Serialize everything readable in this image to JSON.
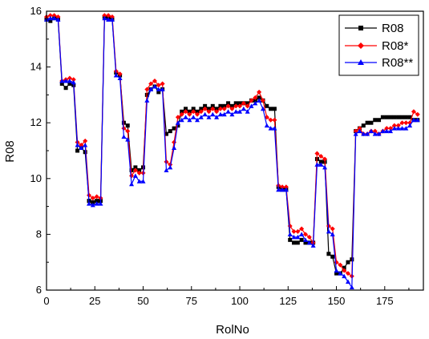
{
  "chart_data": {
    "type": "line",
    "xlabel": "RolNo",
    "ylabel": "R08",
    "xlim": [
      0,
      195
    ],
    "ylim": [
      6,
      16
    ],
    "xticks": [
      "0",
      "25",
      "50",
      "75",
      "100",
      "125",
      "150",
      "175"
    ],
    "yticks": [
      "6",
      "8",
      "10",
      "12",
      "14",
      "16"
    ],
    "grid": false,
    "legend_position": "top-right",
    "x": [
      0,
      2,
      4,
      6,
      8,
      10,
      12,
      14,
      16,
      18,
      20,
      22,
      24,
      26,
      28,
      30,
      32,
      34,
      36,
      38,
      40,
      42,
      44,
      46,
      48,
      50,
      52,
      54,
      56,
      58,
      60,
      62,
      64,
      66,
      68,
      70,
      72,
      74,
      76,
      78,
      80,
      82,
      84,
      86,
      88,
      90,
      92,
      94,
      96,
      98,
      100,
      102,
      104,
      106,
      108,
      110,
      112,
      114,
      116,
      118,
      120,
      122,
      124,
      126,
      128,
      130,
      132,
      134,
      136,
      138,
      140,
      142,
      144,
      146,
      148,
      150,
      152,
      154,
      156,
      158,
      160,
      162,
      164,
      166,
      168,
      170,
      172,
      174,
      176,
      178,
      180,
      182,
      184,
      186,
      188,
      190,
      192
    ],
    "series": [
      {
        "name": "R08",
        "color": "#000000",
        "marker": "square",
        "values": [
          15.7,
          15.65,
          15.75,
          15.7,
          13.4,
          13.25,
          13.4,
          13.35,
          11.0,
          11.1,
          10.95,
          9.2,
          9.15,
          9.2,
          9.2,
          15.8,
          15.75,
          15.7,
          13.8,
          13.7,
          12.0,
          11.9,
          10.3,
          10.4,
          10.3,
          10.4,
          13.0,
          13.2,
          13.3,
          13.1,
          13.2,
          11.6,
          11.7,
          11.8,
          11.9,
          12.4,
          12.5,
          12.4,
          12.5,
          12.4,
          12.5,
          12.6,
          12.5,
          12.6,
          12.5,
          12.6,
          12.6,
          12.7,
          12.6,
          12.7,
          12.7,
          12.7,
          12.7,
          12.8,
          12.8,
          12.9,
          12.8,
          12.6,
          12.5,
          12.5,
          9.7,
          9.6,
          9.6,
          7.8,
          7.7,
          7.7,
          7.8,
          7.7,
          7.7,
          7.7,
          10.7,
          10.6,
          10.6,
          7.3,
          7.2,
          6.6,
          6.6,
          6.8,
          7.0,
          7.1,
          11.7,
          11.8,
          11.9,
          12.0,
          12.0,
          12.1,
          12.1,
          12.2,
          12.2,
          12.2,
          12.2,
          12.2,
          12.2,
          12.2,
          12.2,
          12.1,
          12.1
        ]
      },
      {
        "name": "R08*",
        "color": "#ff0000",
        "marker": "diamond",
        "values": [
          15.8,
          15.85,
          15.85,
          15.8,
          13.5,
          13.55,
          13.6,
          13.55,
          11.3,
          11.2,
          11.35,
          9.4,
          9.3,
          9.35,
          9.3,
          15.85,
          15.85,
          15.8,
          13.85,
          13.75,
          11.8,
          11.7,
          10.1,
          10.3,
          10.2,
          10.2,
          13.2,
          13.4,
          13.5,
          13.35,
          13.4,
          10.6,
          10.5,
          11.3,
          12.2,
          12.3,
          12.4,
          12.3,
          12.4,
          12.3,
          12.4,
          12.5,
          12.4,
          12.5,
          12.4,
          12.5,
          12.5,
          12.6,
          12.5,
          12.6,
          12.6,
          12.7,
          12.6,
          12.8,
          12.9,
          13.1,
          12.8,
          12.2,
          12.1,
          12.1,
          9.75,
          9.7,
          9.7,
          8.3,
          8.1,
          8.1,
          8.2,
          8.0,
          7.9,
          7.7,
          10.9,
          10.8,
          10.7,
          8.3,
          8.2,
          7.0,
          6.9,
          6.7,
          6.6,
          6.5,
          11.7,
          11.8,
          11.6,
          11.6,
          11.7,
          11.7,
          11.6,
          11.7,
          11.8,
          11.8,
          11.9,
          11.9,
          12.0,
          12.0,
          12.0,
          12.4,
          12.3
        ]
      },
      {
        "name": "R08**",
        "color": "#0000ff",
        "marker": "triangle",
        "values": [
          15.7,
          15.75,
          15.75,
          15.7,
          13.5,
          13.5,
          13.5,
          13.45,
          11.2,
          11.1,
          11.2,
          9.1,
          9.05,
          9.1,
          9.1,
          15.75,
          15.7,
          15.7,
          13.7,
          13.6,
          11.5,
          11.4,
          9.8,
          10.1,
          9.9,
          9.9,
          12.8,
          13.2,
          13.3,
          13.2,
          13.2,
          10.3,
          10.4,
          11.1,
          12.0,
          12.1,
          12.2,
          12.1,
          12.2,
          12.1,
          12.2,
          12.3,
          12.2,
          12.3,
          12.2,
          12.3,
          12.3,
          12.4,
          12.3,
          12.4,
          12.4,
          12.5,
          12.4,
          12.6,
          12.7,
          12.8,
          12.5,
          11.9,
          11.8,
          11.8,
          9.6,
          9.6,
          9.6,
          8.0,
          7.9,
          7.9,
          8.0,
          7.8,
          7.7,
          7.6,
          10.5,
          10.5,
          10.4,
          8.1,
          8.0,
          6.7,
          6.6,
          6.5,
          6.3,
          6.1,
          11.6,
          11.7,
          11.6,
          11.6,
          11.7,
          11.6,
          11.6,
          11.7,
          11.7,
          11.7,
          11.8,
          11.8,
          11.8,
          11.8,
          11.9,
          12.1,
          12.1
        ]
      }
    ]
  }
}
